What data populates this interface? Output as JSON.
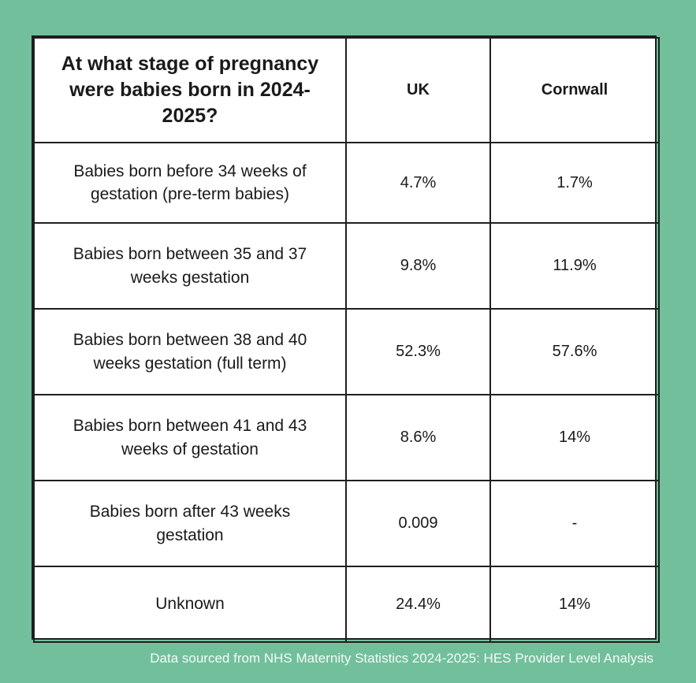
{
  "chart_data": {
    "type": "table",
    "title": "At what stage of pregnancy were babies born in 2024-2025?",
    "columns": [
      "UK",
      "Cornwall"
    ],
    "rows": [
      {
        "label": "Babies born before 34 weeks of gestation (pre-term babies)",
        "uk": "4.7%",
        "cornwall": "1.7%"
      },
      {
        "label": "Babies born between 35 and 37 weeks gestation",
        "uk": "9.8%",
        "cornwall": "11.9%"
      },
      {
        "label": "Babies born between 38 and 40 weeks gestation (full term)",
        "uk": "52.3%",
        "cornwall": "57.6%"
      },
      {
        "label": "Babies born between 41 and 43 weeks of gestation",
        "uk": "8.6%",
        "cornwall": "14%"
      },
      {
        "label": "Babies born after 43 weeks gestation",
        "uk": "0.009",
        "cornwall": "-"
      },
      {
        "label": "Unknown",
        "uk": "24.4%",
        "cornwall": "14%"
      }
    ]
  },
  "source_note": "Data sourced from NHS Maternity Statistics 2024-2025: HES Provider Level Analysis",
  "colors": {
    "background": "#72bf9c",
    "table_background": "#ffffff",
    "border": "#1f1f1f",
    "source_text": "#f4fbf7"
  }
}
